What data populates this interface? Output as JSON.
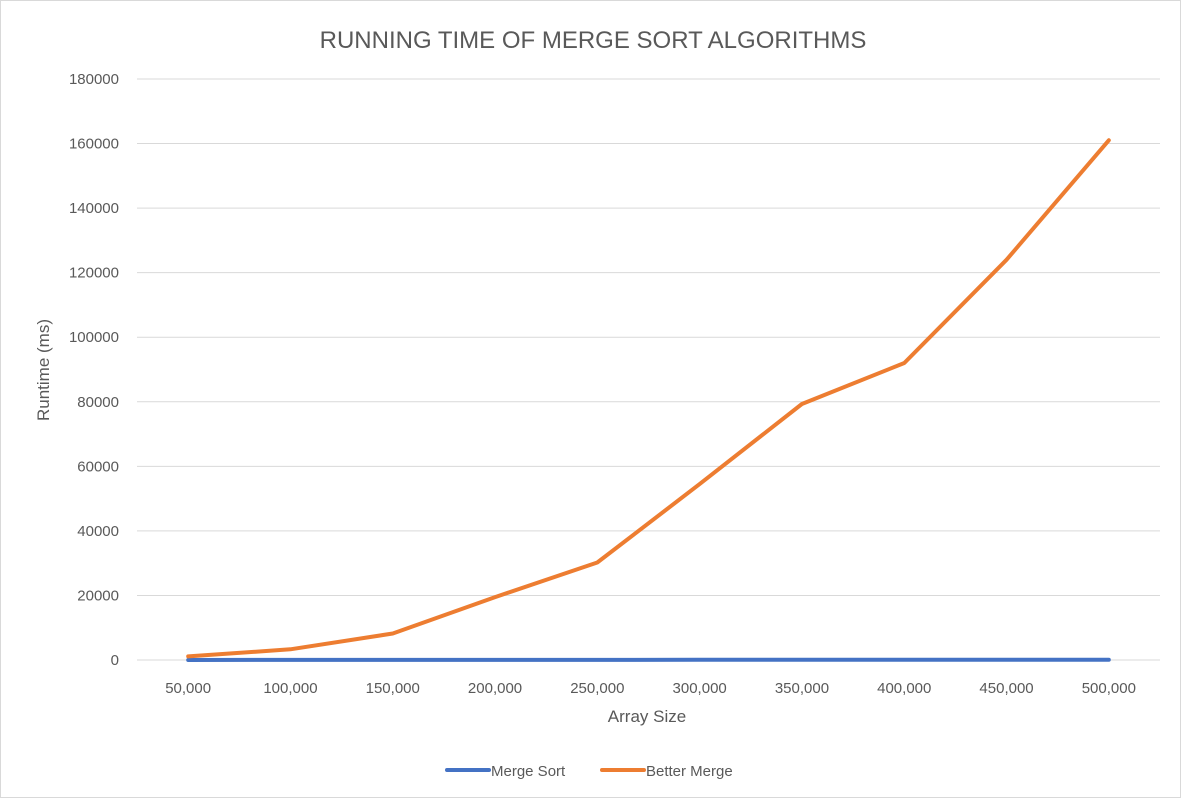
{
  "chart_data": {
    "type": "line",
    "title": "RUNNING TIME OF MERGE SORT ALGORITHMS",
    "xlabel": "Array Size",
    "ylabel": "Runtime (ms)",
    "categories": [
      "50,000",
      "100,000",
      "150,000",
      "200,000",
      "250,000",
      "300,000",
      "350,000",
      "400,000",
      "450,000",
      "500,000"
    ],
    "ylim": [
      0,
      180000
    ],
    "yticks": [
      "0",
      "20000",
      "40000",
      "60000",
      "80000",
      "100000",
      "120000",
      "140000",
      "160000",
      "180000"
    ],
    "grid": true,
    "legend_position": "bottom",
    "series": [
      {
        "name": "Merge Sort",
        "color": "#4472c4",
        "values": [
          8,
          17,
          26,
          36,
          46,
          56,
          66,
          77,
          87,
          97
        ]
      },
      {
        "name": "Better Merge",
        "color": "#ed7d31",
        "values": [
          1100,
          3300,
          8200,
          19500,
          30200,
          54500,
          79300,
          92000,
          124000,
          161000
        ]
      }
    ]
  }
}
